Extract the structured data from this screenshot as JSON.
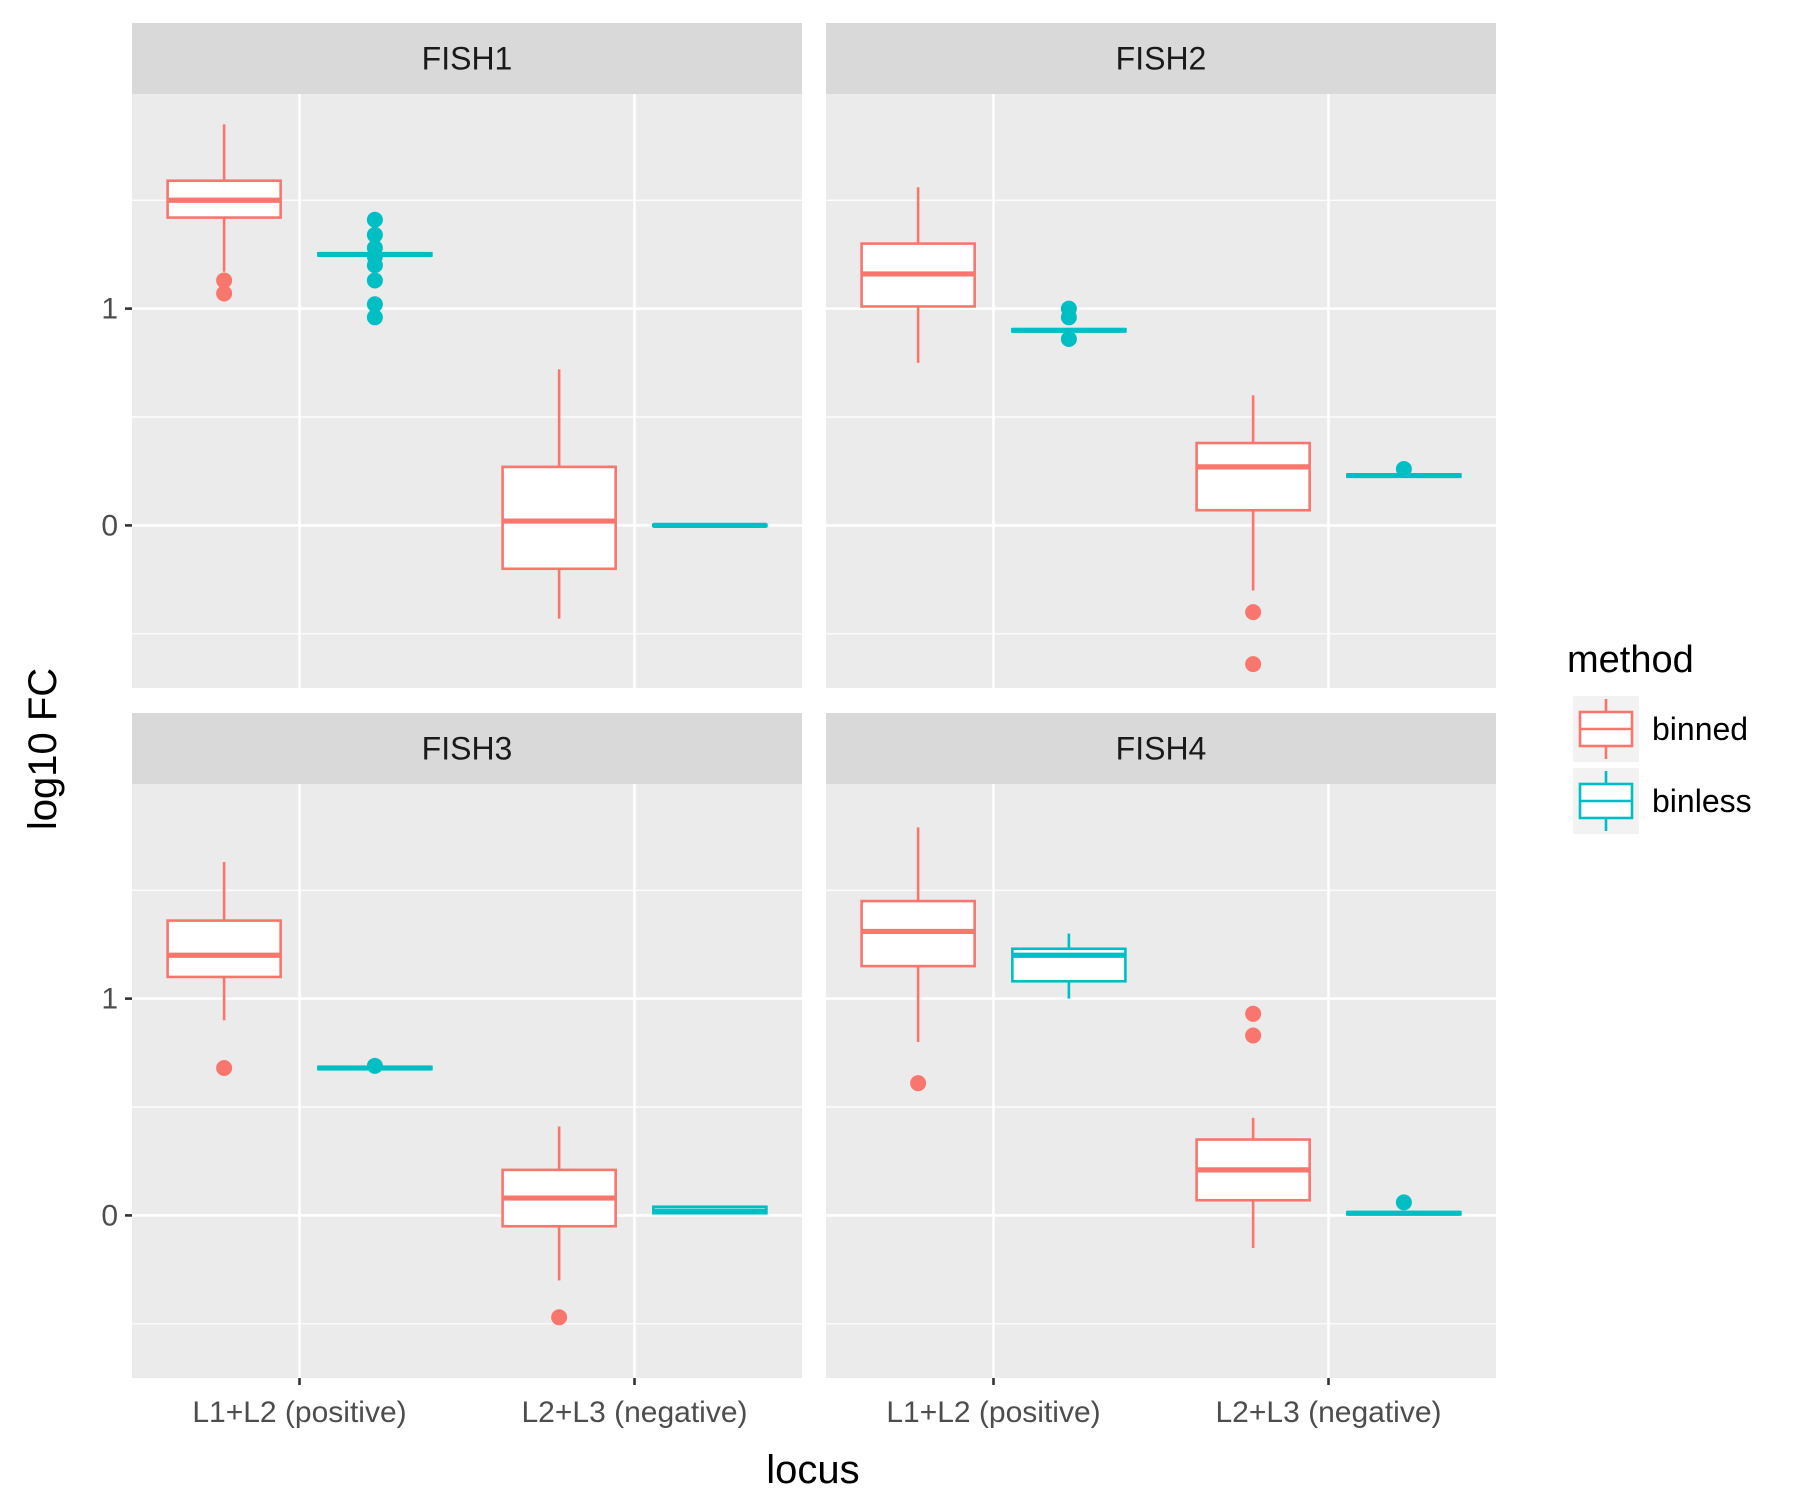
{
  "chart_data": {
    "type": "boxplot",
    "facet_layout": "2x2",
    "x": {
      "label": "locus",
      "categories": [
        "L1+L2 (positive)",
        "L2+L3 (negative)"
      ]
    },
    "y": {
      "label": "log10 FC",
      "range": [
        -0.75,
        1.99
      ],
      "ticks": [
        0,
        1
      ]
    },
    "grid": true,
    "legend": {
      "title": "method",
      "position": "right",
      "entries": [
        {
          "name": "binned",
          "color": "#F8766D"
        },
        {
          "name": "binless",
          "color": "#00BFC4"
        }
      ]
    },
    "panels": [
      {
        "title": "FISH1",
        "boxes": [
          {
            "locus": "L1+L2 (positive)",
            "method": "binned",
            "min": 1.17,
            "q1": 1.42,
            "median": 1.5,
            "q3": 1.59,
            "max": 1.85,
            "outliers": [
              1.13,
              1.07
            ]
          },
          {
            "locus": "L1+L2 (positive)",
            "method": "binless",
            "min": 1.245,
            "q1": 1.245,
            "median": 1.25,
            "q3": 1.255,
            "max": 1.255,
            "outliers": [
              1.41,
              1.34,
              1.28,
              1.24,
              1.2,
              1.13,
              1.02,
              0.96
            ]
          },
          {
            "locus": "L2+L3 (negative)",
            "method": "binned",
            "min": -0.43,
            "q1": -0.2,
            "median": 0.02,
            "q3": 0.27,
            "max": 0.72,
            "outliers": []
          },
          {
            "locus": "L2+L3 (negative)",
            "method": "binless",
            "min": -0.003,
            "q1": -0.003,
            "median": 0,
            "q3": 0.003,
            "max": 0.003,
            "outliers": []
          }
        ]
      },
      {
        "title": "FISH2",
        "boxes": [
          {
            "locus": "L1+L2 (positive)",
            "method": "binned",
            "min": 0.75,
            "q1": 1.01,
            "median": 1.16,
            "q3": 1.3,
            "max": 1.56,
            "outliers": []
          },
          {
            "locus": "L1+L2 (positive)",
            "method": "binless",
            "min": 0.895,
            "q1": 0.895,
            "median": 0.9,
            "q3": 0.905,
            "max": 0.905,
            "outliers": [
              1.0,
              0.96,
              0.86
            ]
          },
          {
            "locus": "L2+L3 (negative)",
            "method": "binned",
            "min": -0.3,
            "q1": 0.07,
            "median": 0.27,
            "q3": 0.38,
            "max": 0.6,
            "outliers": [
              -0.4,
              -0.64
            ]
          },
          {
            "locus": "L2+L3 (negative)",
            "method": "binless",
            "min": 0.225,
            "q1": 0.225,
            "median": 0.23,
            "q3": 0.235,
            "max": 0.235,
            "outliers": [
              0.26
            ]
          }
        ]
      },
      {
        "title": "FISH3",
        "boxes": [
          {
            "locus": "L1+L2 (positive)",
            "method": "binned",
            "min": 0.9,
            "q1": 1.1,
            "median": 1.2,
            "q3": 1.36,
            "max": 1.63,
            "outliers": [
              0.68
            ]
          },
          {
            "locus": "L1+L2 (positive)",
            "method": "binless",
            "min": 0.675,
            "q1": 0.675,
            "median": 0.68,
            "q3": 0.685,
            "max": 0.685,
            "outliers": [
              0.69
            ]
          },
          {
            "locus": "L2+L3 (negative)",
            "method": "binned",
            "min": -0.3,
            "q1": -0.05,
            "median": 0.08,
            "q3": 0.21,
            "max": 0.41,
            "outliers": [
              -0.47
            ]
          },
          {
            "locus": "L2+L3 (negative)",
            "method": "binless",
            "min": 0.01,
            "q1": 0.01,
            "median": 0.02,
            "q3": 0.04,
            "max": 0.04,
            "outliers": []
          }
        ]
      },
      {
        "title": "FISH4",
        "boxes": [
          {
            "locus": "L1+L2 (positive)",
            "method": "binned",
            "min": 0.8,
            "q1": 1.15,
            "median": 1.31,
            "q3": 1.45,
            "max": 1.79,
            "outliers": [
              0.61
            ]
          },
          {
            "locus": "L1+L2 (positive)",
            "method": "binless",
            "min": 1.0,
            "q1": 1.08,
            "median": 1.2,
            "q3": 1.23,
            "max": 1.3,
            "outliers": []
          },
          {
            "locus": "L2+L3 (negative)",
            "method": "binned",
            "min": -0.15,
            "q1": 0.07,
            "median": 0.21,
            "q3": 0.35,
            "max": 0.45,
            "outliers": [
              0.93,
              0.83
            ]
          },
          {
            "locus": "L2+L3 (negative)",
            "method": "binless",
            "min": 0.005,
            "q1": 0.005,
            "median": 0.01,
            "q3": 0.015,
            "max": 0.015,
            "outliers": [
              0.06
            ]
          }
        ]
      }
    ]
  }
}
